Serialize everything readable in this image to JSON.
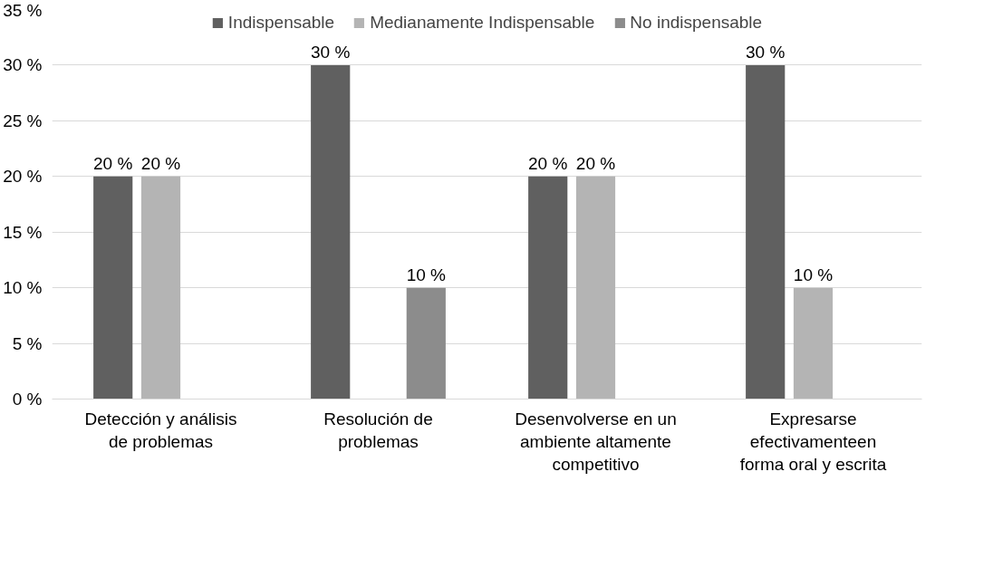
{
  "chart_data": {
    "type": "bar",
    "categories": [
      "Detección y análisis de problemas",
      "Resolución de problemas",
      "Desenvolverse en un ambiente altamente competitivo",
      "Expresarse efectivamenteen forma oral y escrita"
    ],
    "series": [
      {
        "name": "Indispensable",
        "color": "#606060",
        "values": [
          20,
          30,
          20,
          30
        ],
        "value_labels": [
          "20 %",
          "30 %",
          "20 %",
          "30 %"
        ]
      },
      {
        "name": "Medianamente Indispensable",
        "color": "#b4b4b4",
        "values": [
          20,
          null,
          20,
          10
        ],
        "value_labels": [
          "20 %",
          null,
          "20 %",
          "10 %"
        ]
      },
      {
        "name": "No indispensable",
        "color": "#8c8c8c",
        "values": [
          null,
          10,
          null,
          null
        ],
        "value_labels": [
          null,
          "10 %",
          null,
          null
        ]
      }
    ],
    "ylim": [
      0,
      35
    ],
    "yticks": [
      {
        "value": 0,
        "label": "0 %"
      },
      {
        "value": 5,
        "label": "5 %"
      },
      {
        "value": 10,
        "label": "10 %"
      },
      {
        "value": 15,
        "label": "15 %"
      },
      {
        "value": 20,
        "label": "20 %"
      },
      {
        "value": 25,
        "label": "25 %"
      },
      {
        "value": 30,
        "label": "30 %"
      },
      {
        "value": 35,
        "label": "35 %"
      }
    ],
    "grid": "y",
    "legend": "top"
  }
}
